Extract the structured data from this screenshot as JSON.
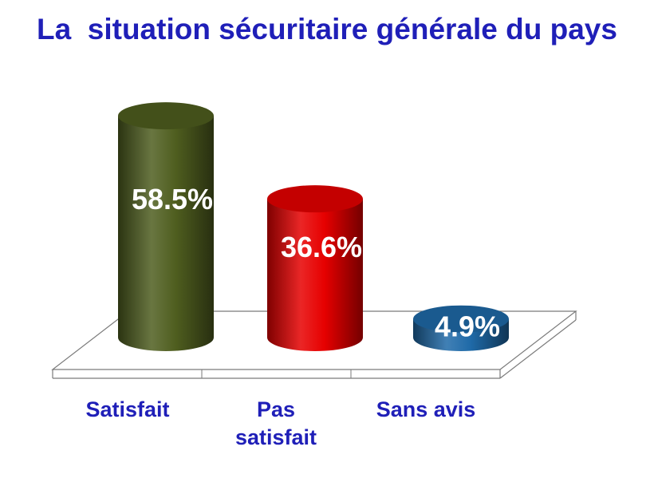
{
  "chart_data": {
    "type": "bar",
    "title": "La  situation sécuritaire générale du pays",
    "categories": [
      [
        "Satisfait"
      ],
      [
        "Pas",
        "satisfait"
      ],
      [
        "Sans avis"
      ]
    ],
    "values": [
      58.5,
      36.6,
      4.9
    ],
    "data_labels": [
      "58.5%",
      "36.6%",
      "4.9%"
    ],
    "colors": [
      "#4f5e1f",
      "#e60000",
      "#1f6aa8"
    ],
    "ylim": [
      0,
      60
    ],
    "grid": false,
    "legend": "none",
    "style": "3d-cylinder"
  }
}
